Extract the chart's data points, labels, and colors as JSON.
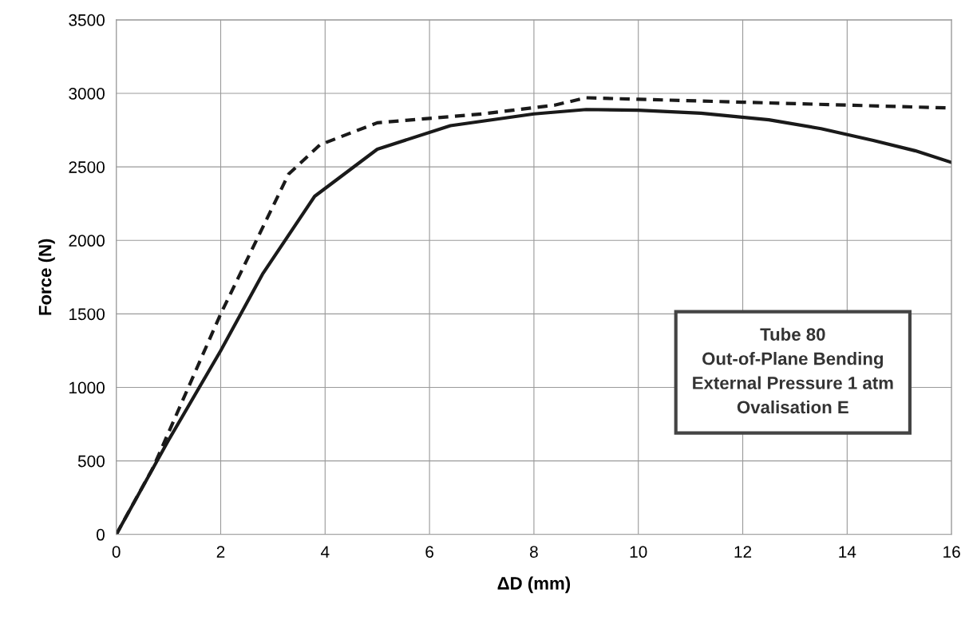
{
  "chart_data": {
    "type": "line",
    "xlabel": "ΔD (mm)",
    "ylabel": "Force (N)",
    "xlim": [
      0,
      16
    ],
    "xticks": [
      0,
      2,
      4,
      6,
      8,
      10,
      12,
      14,
      16
    ],
    "ylim": [
      0,
      3500
    ],
    "yticks": [
      0,
      500,
      1000,
      1500,
      2000,
      2500,
      3000,
      3500
    ],
    "grid": true,
    "legend": false,
    "marker": "none",
    "series": [
      {
        "color": "#1a1a1a",
        "line_style": "solid",
        "x": [
          0,
          1,
          2,
          2.8,
          3.8,
          5,
          6.4,
          8,
          9,
          10,
          11.2,
          12.5,
          13.5,
          14.5,
          15.3,
          16
        ],
        "values": [
          0,
          640,
          1250,
          1770,
          2300,
          2620,
          2780,
          2860,
          2890,
          2885,
          2865,
          2820,
          2760,
          2680,
          2610,
          2530
        ]
      },
      {
        "color": "#1a1a1a",
        "line_style": "dashed",
        "x": [
          0,
          0.7,
          2,
          3.3,
          3.9,
          5,
          6,
          7,
          8.4,
          9,
          10,
          12,
          14,
          16
        ],
        "values": [
          0,
          450,
          1500,
          2450,
          2650,
          2800,
          2830,
          2860,
          2920,
          2970,
          2960,
          2940,
          2920,
          2900
        ]
      }
    ],
    "annotations": [
      "Tube 80\nOut-of-Plane Bending\nExternal Pressure 1 atm\nOvalisation E"
    ]
  }
}
